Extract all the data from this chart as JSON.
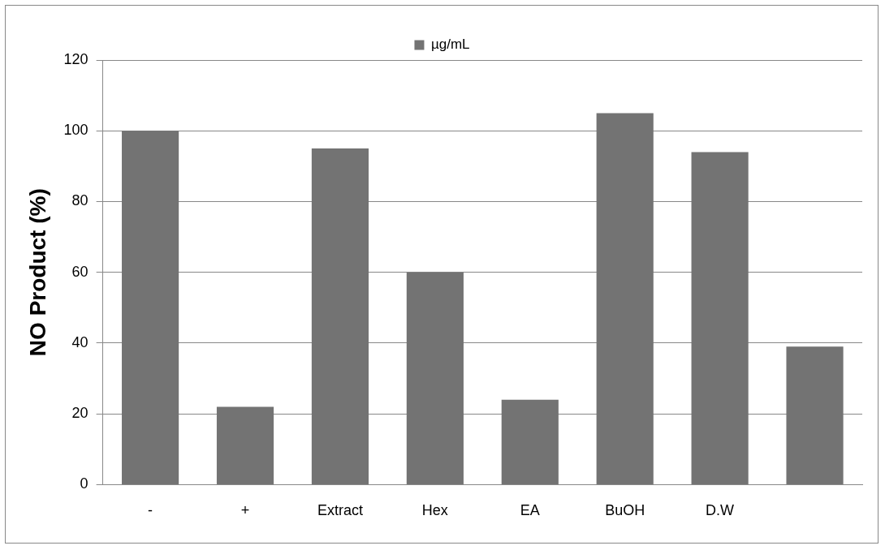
{
  "chart_data": {
    "type": "bar",
    "ylabel": "NO Product (%)",
    "categories": [
      "-",
      "+",
      "Extract",
      "Hex",
      "EA",
      "BuOH",
      "D.W",
      null
    ],
    "series": [
      {
        "name": "µg/mL",
        "color": "#737373",
        "values": [
          100,
          22,
          95,
          60,
          24,
          105,
          94,
          39
        ]
      }
    ],
    "ylim": [
      0,
      120
    ],
    "yticks": [
      0,
      20,
      40,
      60,
      80,
      100,
      120
    ],
    "grid": "y",
    "legend": "top"
  }
}
